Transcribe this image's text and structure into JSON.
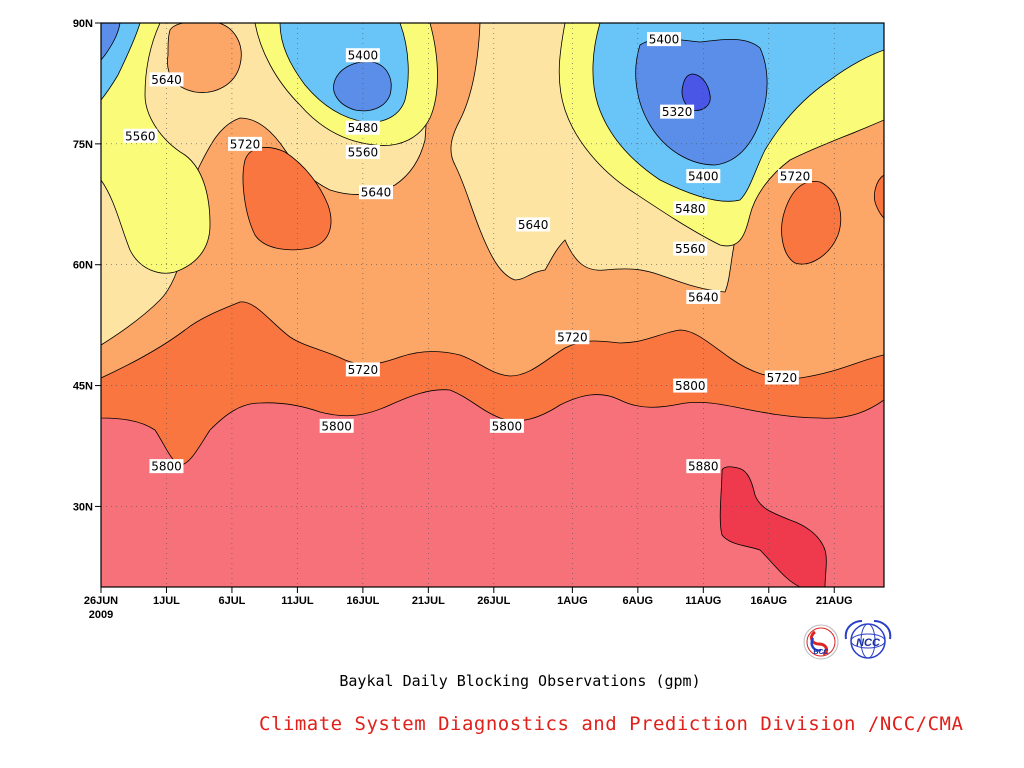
{
  "chart_data": {
    "type": "contour",
    "caption": "Baykal Daily Blocking Observations (gpm)",
    "x_ticks": [
      "26JUN",
      "1JUL",
      "6JUL",
      "11JUL",
      "16JUL",
      "21JUL",
      "26JUL",
      "1AUG",
      "6AUG",
      "11AUG",
      "16AUG",
      "21AUG"
    ],
    "x_year": "2009",
    "y_ticks": [
      "90N",
      "75N",
      "60N",
      "45N",
      "30N"
    ],
    "y_values": [
      90,
      75,
      60,
      45,
      30
    ],
    "ylim": [
      20,
      90
    ],
    "grid": true,
    "contour_interval": 80,
    "fill_colors": {
      "below_5320": "#4a57e6",
      "5320_5400": "#5b8ee8",
      "5400_5480": "#69c5f8",
      "5480_5560": "#fbfb7a",
      "5560_5640": "#fde4a3",
      "5640_5720": "#fca667",
      "5720_5800": "#fa7641",
      "5800_5880": "#f6717a",
      "above_5880": "#ee3a4c"
    },
    "contour_labels": [
      {
        "text": "5400",
        "date": "16JUL",
        "lat": 86
      },
      {
        "text": "5640",
        "date": "1JUL",
        "lat": 83
      },
      {
        "text": "5560",
        "date": "29JUN",
        "lat": 76
      },
      {
        "text": "5720",
        "date": "7JUL",
        "lat": 75
      },
      {
        "text": "5480",
        "date": "16JUL",
        "lat": 77
      },
      {
        "text": "5560",
        "date": "16JUL",
        "lat": 74
      },
      {
        "text": "5640",
        "date": "17JUL",
        "lat": 69
      },
      {
        "text": "5400",
        "date": "8AUG",
        "lat": 88
      },
      {
        "text": "5320",
        "date": "9AUG",
        "lat": 79
      },
      {
        "text": "5400",
        "date": "11AUG",
        "lat": 71
      },
      {
        "text": "5480",
        "date": "10AUG",
        "lat": 67
      },
      {
        "text": "5560",
        "date": "10AUG",
        "lat": 62
      },
      {
        "text": "5640",
        "date": "11AUG",
        "lat": 56
      },
      {
        "text": "5720",
        "date": "18AUG",
        "lat": 71
      },
      {
        "text": "5640",
        "date": "29JUL",
        "lat": 65
      },
      {
        "text": "5720",
        "date": "1AUG",
        "lat": 51
      },
      {
        "text": "5720",
        "date": "16JUL",
        "lat": 47
      },
      {
        "text": "5800",
        "date": "10AUG",
        "lat": 45
      },
      {
        "text": "5720",
        "date": "17AUG",
        "lat": 46
      },
      {
        "text": "5800",
        "date": "14JUL",
        "lat": 40
      },
      {
        "text": "5800",
        "date": "27JUL",
        "lat": 40
      },
      {
        "text": "5800",
        "date": "1JUL",
        "lat": 35
      },
      {
        "text": "5880",
        "date": "11AUG",
        "lat": 35
      }
    ]
  },
  "footer": {
    "division": "Climate System Diagnostics and Prediction Division /NCC/CMA"
  },
  "logos": {
    "left_logo_text": "BCC",
    "right_logo_text": "NCC"
  }
}
